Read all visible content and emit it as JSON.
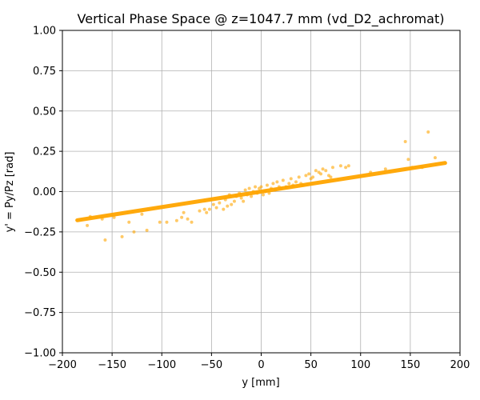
{
  "chart_data": {
    "type": "scatter",
    "title": "Vertical Phase Space @ z=1047.7 mm (vd_D2_achromat)",
    "xlabel": "y [mm]",
    "ylabel": "y' = Py/Pz [rad]",
    "xlim": [
      -200,
      200
    ],
    "ylim": [
      -1.0,
      1.0
    ],
    "grid": true,
    "legend": "none",
    "color": "#FFA500",
    "xticks": [
      -200,
      -150,
      -100,
      -50,
      0,
      50,
      100,
      150,
      200
    ],
    "xtick_labels": [
      "−200",
      "−150",
      "−100",
      "−50",
      "0",
      "50",
      "100",
      "150",
      "200"
    ],
    "yticks": [
      -1.0,
      -0.75,
      -0.5,
      -0.25,
      0.0,
      0.25,
      0.5,
      0.75,
      1.0
    ],
    "ytick_labels": [
      "−1.00",
      "−0.75",
      "−0.50",
      "−0.25",
      "0.00",
      "0.25",
      "0.50",
      "0.75",
      "1.00"
    ],
    "main_band": {
      "x_range": [
        -185,
        185
      ],
      "slope_rad_per_mm": 0.00096
    },
    "points": [
      [
        -175,
        -0.21
      ],
      [
        -172,
        -0.155
      ],
      [
        -160,
        -0.17
      ],
      [
        -157,
        -0.3
      ],
      [
        -148,
        -0.16
      ],
      [
        -140,
        -0.28
      ],
      [
        -133,
        -0.19
      ],
      [
        -128,
        -0.25
      ],
      [
        -120,
        -0.14
      ],
      [
        -115,
        -0.24
      ],
      [
        -102,
        -0.19
      ],
      [
        -95,
        -0.19
      ],
      [
        -85,
        -0.18
      ],
      [
        -80,
        -0.16
      ],
      [
        -78,
        -0.13
      ],
      [
        -74,
        -0.17
      ],
      [
        -70,
        -0.19
      ],
      [
        -62,
        -0.12
      ],
      [
        -57,
        -0.11
      ],
      [
        -55,
        -0.13
      ],
      [
        -52,
        -0.11
      ],
      [
        -48,
        -0.08
      ],
      [
        -45,
        -0.1
      ],
      [
        -42,
        -0.07
      ],
      [
        -38,
        -0.11
      ],
      [
        -36,
        -0.05
      ],
      [
        -34,
        -0.09
      ],
      [
        -32,
        -0.02
      ],
      [
        -30,
        -0.08
      ],
      [
        -27,
        -0.06
      ],
      [
        -25,
        -0.03
      ],
      [
        -22,
        -0.01
      ],
      [
        -20,
        -0.04
      ],
      [
        -18,
        -0.06
      ],
      [
        -16,
        0.01
      ],
      [
        -14,
        -0.02
      ],
      [
        -12,
        0.02
      ],
      [
        -10,
        -0.03
      ],
      [
        -8,
        0.0
      ],
      [
        -6,
        0.03
      ],
      [
        -4,
        -0.01
      ],
      [
        -2,
        0.02
      ],
      [
        0,
        0.03
      ],
      [
        2,
        -0.02
      ],
      [
        4,
        0.0
      ],
      [
        6,
        0.04
      ],
      [
        8,
        -0.01
      ],
      [
        10,
        0.02
      ],
      [
        12,
        0.05
      ],
      [
        14,
        0.01
      ],
      [
        16,
        0.06
      ],
      [
        18,
        0.03
      ],
      [
        20,
        0.02
      ],
      [
        22,
        0.07
      ],
      [
        25,
        0.03
      ],
      [
        28,
        0.05
      ],
      [
        30,
        0.08
      ],
      [
        32,
        0.04
      ],
      [
        35,
        0.06
      ],
      [
        38,
        0.09
      ],
      [
        40,
        0.05
      ],
      [
        42,
        0.04
      ],
      [
        45,
        0.1
      ],
      [
        48,
        0.11
      ],
      [
        50,
        0.08
      ],
      [
        52,
        0.09
      ],
      [
        55,
        0.13
      ],
      [
        58,
        0.12
      ],
      [
        60,
        0.11
      ],
      [
        62,
        0.14
      ],
      [
        65,
        0.13
      ],
      [
        68,
        0.1
      ],
      [
        70,
        0.09
      ],
      [
        72,
        0.15
      ],
      [
        80,
        0.16
      ],
      [
        85,
        0.15
      ],
      [
        88,
        0.16
      ],
      [
        110,
        0.12
      ],
      [
        125,
        0.14
      ],
      [
        145,
        0.31
      ],
      [
        148,
        0.2
      ],
      [
        152,
        0.15
      ],
      [
        162,
        0.15
      ],
      [
        168,
        0.37
      ],
      [
        175,
        0.21
      ]
    ]
  }
}
